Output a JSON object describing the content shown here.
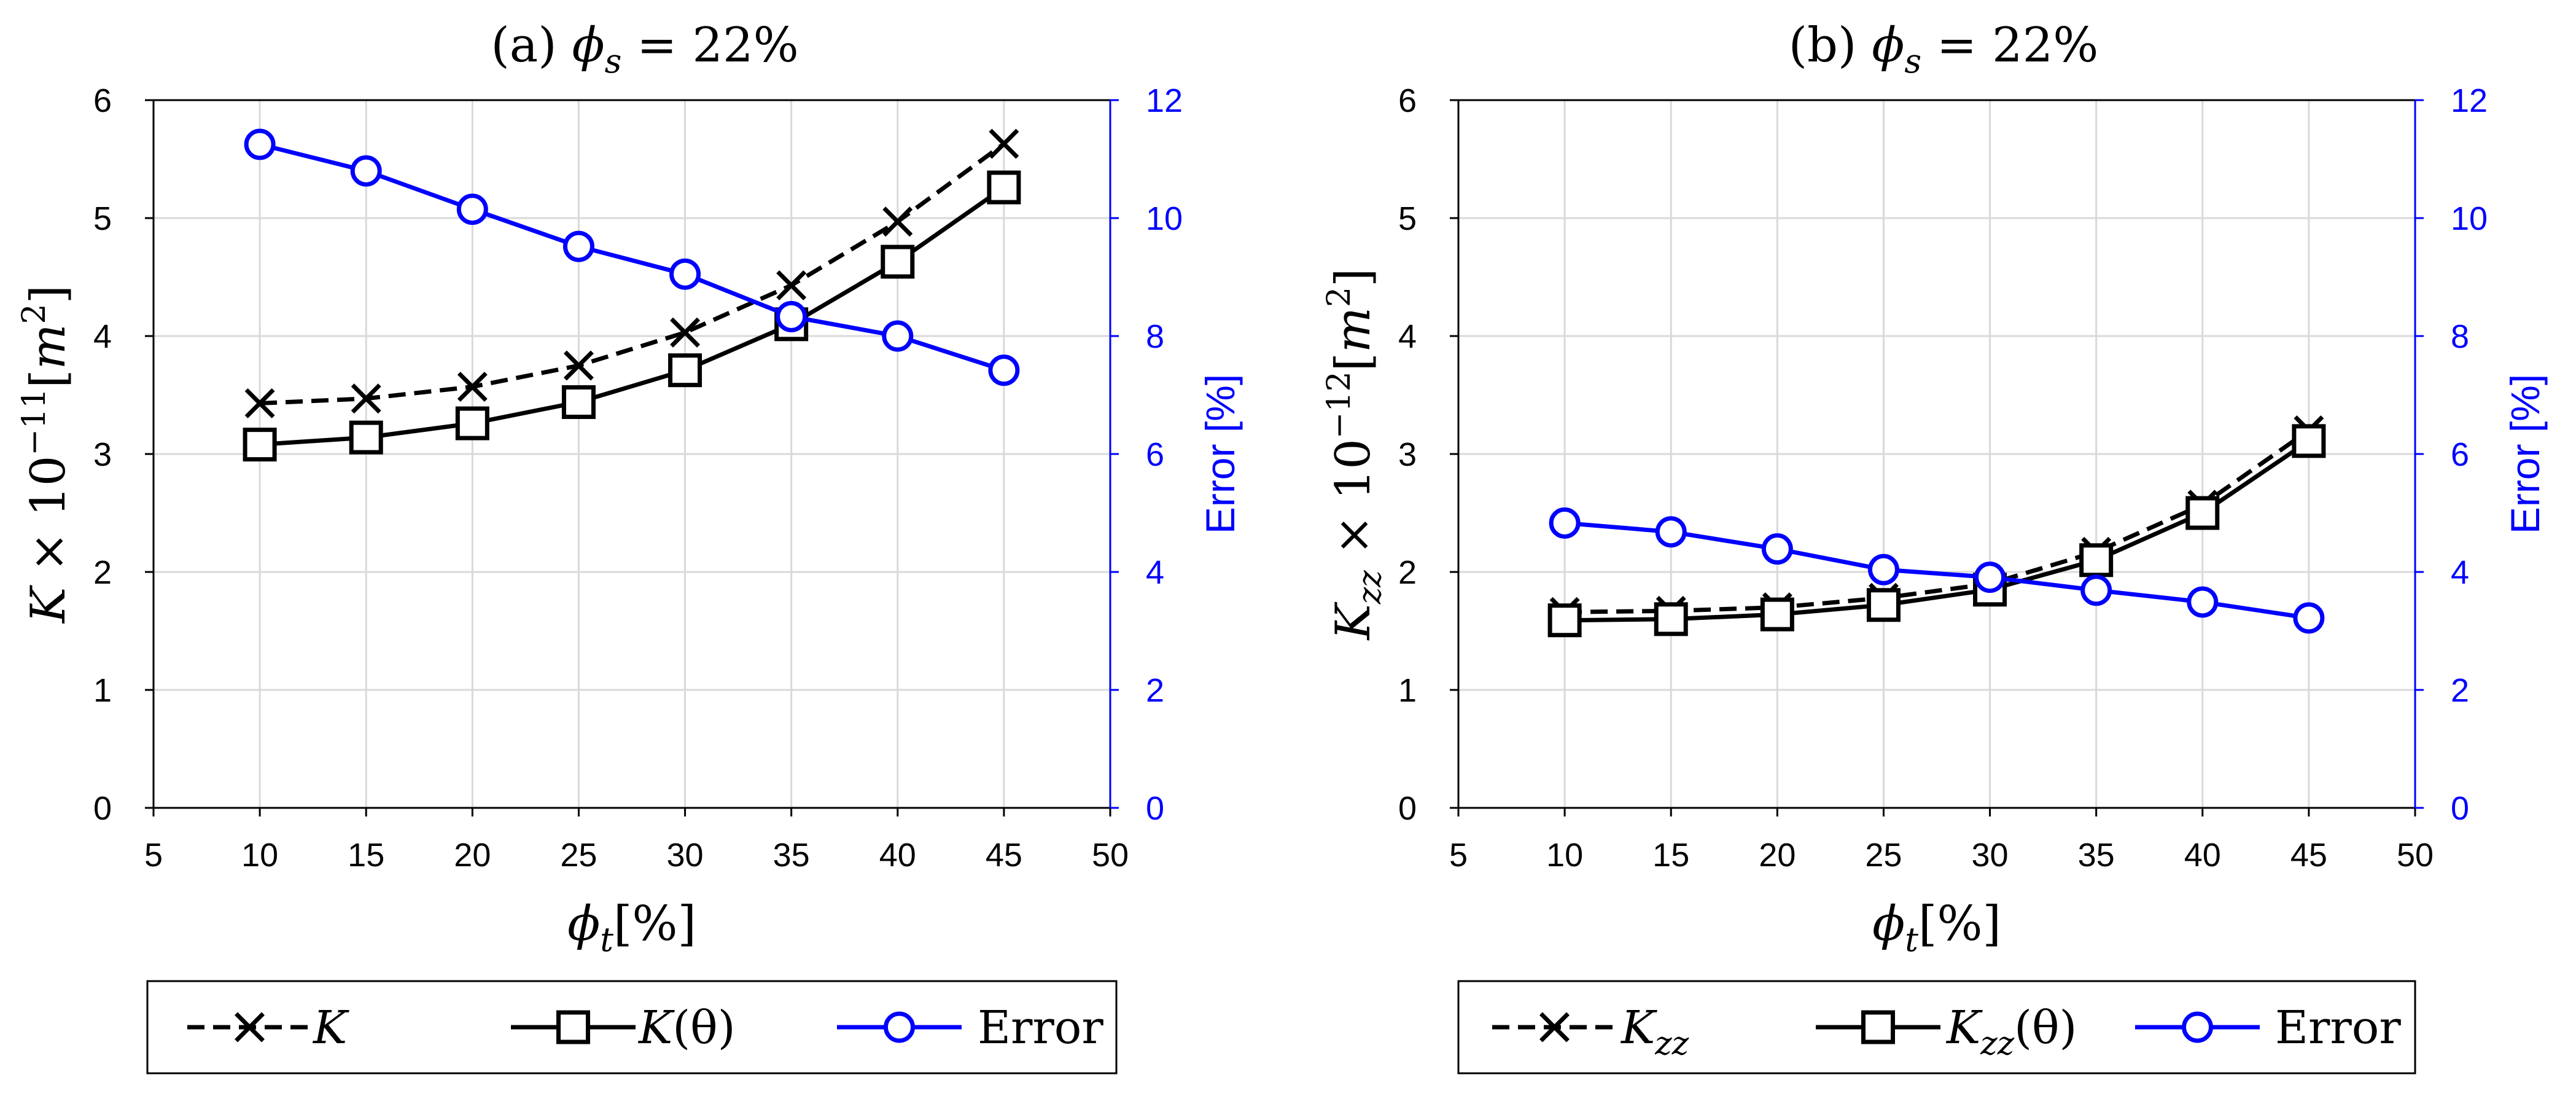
{
  "chart_data": [
    {
      "type": "line",
      "panel": "(a)",
      "title": "(a) ϕ_s = 22%",
      "title_parts": {
        "prefix": "(a) ",
        "sym": "ϕ",
        "sub": "s",
        "suffix": " = 22%"
      },
      "xlabel_parts": {
        "sym": "ϕ",
        "sub": "t",
        "suffix": "[%]"
      },
      "ylabel_parts": {
        "sym": "K",
        "mid": " × 10",
        "exp": "−11",
        "unit_open": "[",
        "unit": "m",
        "unit_exp": "2",
        "unit_close": "]"
      },
      "y2label": "Error [%]",
      "xlim": [
        5,
        50
      ],
      "xticks": [
        5,
        10,
        15,
        20,
        25,
        30,
        35,
        40,
        45,
        50
      ],
      "ylim": [
        0,
        6
      ],
      "yticks": [
        0,
        1,
        2,
        3,
        4,
        5,
        6
      ],
      "y2lim": [
        0,
        12
      ],
      "y2ticks": [
        0,
        2,
        4,
        6,
        8,
        10,
        12
      ],
      "grid": true,
      "x": [
        10,
        15,
        20,
        25,
        30,
        35,
        40,
        45
      ],
      "series": [
        {
          "name": "K",
          "legend": {
            "sym": "K",
            "sub": "",
            "suffix": ""
          },
          "axis": "left",
          "style": "dashed",
          "marker": "x",
          "color": "#000000",
          "values": [
            3.43,
            3.47,
            3.57,
            3.75,
            4.03,
            4.43,
            4.97,
            5.63
          ]
        },
        {
          "name": "K(θ)",
          "legend": {
            "sym": "K",
            "sub": "",
            "suffix": "(θ)"
          },
          "axis": "left",
          "style": "solid",
          "marker": "square",
          "color": "#000000",
          "values": [
            3.08,
            3.14,
            3.26,
            3.44,
            3.71,
            4.1,
            4.63,
            5.26
          ]
        },
        {
          "name": "Error",
          "legend": {
            "sym": "",
            "sub": "",
            "suffix": "Error"
          },
          "axis": "right",
          "style": "solid",
          "marker": "circle",
          "color": "#0000ff",
          "values": [
            11.25,
            10.8,
            10.15,
            9.52,
            9.05,
            8.33,
            8.0,
            7.42
          ]
        }
      ]
    },
    {
      "type": "line",
      "panel": "(b)",
      "title": "(b) ϕ_s = 22%",
      "title_parts": {
        "prefix": "(b) ",
        "sym": "ϕ",
        "sub": "s",
        "suffix": " = 22%"
      },
      "xlabel_parts": {
        "sym": "ϕ",
        "sub": "t",
        "suffix": "[%]"
      },
      "ylabel_parts": {
        "sym": "K",
        "sub": "zz",
        "mid": " × 10",
        "exp": "−12",
        "unit_open": "[",
        "unit": "m",
        "unit_exp": "2",
        "unit_close": "]"
      },
      "y2label": "Error [%]",
      "xlim": [
        5,
        50
      ],
      "xticks": [
        5,
        10,
        15,
        20,
        25,
        30,
        35,
        40,
        45,
        50
      ],
      "ylim": [
        0,
        6
      ],
      "yticks": [
        0,
        1,
        2,
        3,
        4,
        5,
        6
      ],
      "y2lim": [
        0,
        12
      ],
      "y2ticks": [
        0,
        2,
        4,
        6,
        8,
        10,
        12
      ],
      "grid": true,
      "x": [
        10,
        15,
        20,
        25,
        30,
        35,
        40,
        45
      ],
      "series": [
        {
          "name": "K_zz",
          "legend": {
            "sym": "K",
            "sub": "zz",
            "suffix": ""
          },
          "axis": "left",
          "style": "dashed",
          "marker": "x",
          "color": "#000000",
          "values": [
            1.66,
            1.67,
            1.7,
            1.78,
            1.9,
            2.17,
            2.57,
            3.2
          ]
        },
        {
          "name": "K_zz(θ)",
          "legend": {
            "sym": "K",
            "sub": "zz",
            "suffix": "(θ)"
          },
          "axis": "left",
          "style": "solid",
          "marker": "square",
          "color": "#000000",
          "values": [
            1.59,
            1.6,
            1.64,
            1.72,
            1.85,
            2.1,
            2.5,
            3.11
          ]
        },
        {
          "name": "Error",
          "legend": {
            "sym": "",
            "sub": "",
            "suffix": "Error"
          },
          "axis": "right",
          "style": "solid",
          "marker": "circle",
          "color": "#0000ff",
          "values": [
            4.83,
            4.68,
            4.39,
            4.04,
            3.91,
            3.69,
            3.49,
            3.22
          ]
        }
      ]
    }
  ]
}
